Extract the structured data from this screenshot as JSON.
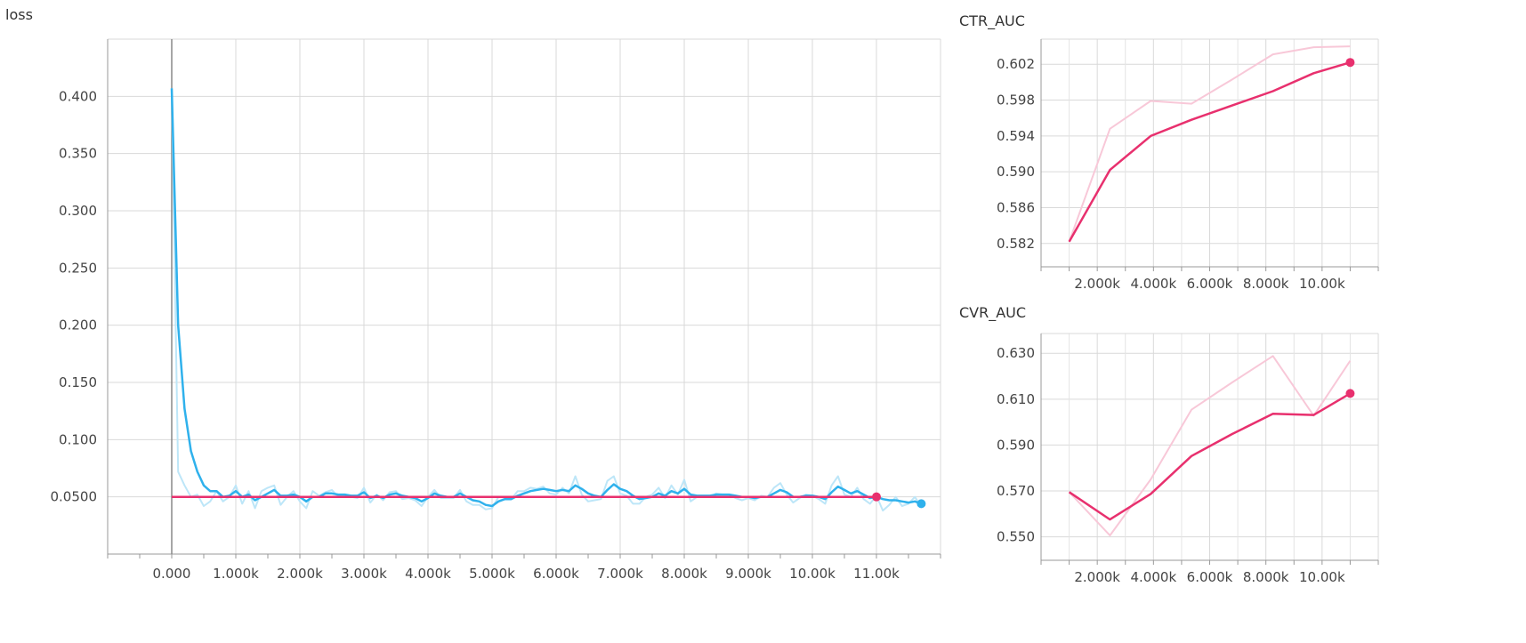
{
  "chart_data": [
    {
      "type": "line",
      "title": "loss",
      "xlim": [
        -1000,
        12000
      ],
      "ylim": [
        0,
        0.45
      ],
      "x_ticks": [
        0,
        1000,
        2000,
        3000,
        4000,
        5000,
        6000,
        7000,
        8000,
        9000,
        10000,
        11000
      ],
      "x_tick_labels": [
        "0.000",
        "1.000k",
        "2.000k",
        "3.000k",
        "4.000k",
        "5.000k",
        "6.000k",
        "7.000k",
        "8.000k",
        "9.000k",
        "10.00k",
        "11.00k"
      ],
      "y_ticks": [
        0.05,
        0.1,
        0.15,
        0.2,
        0.25,
        0.3,
        0.35,
        0.4
      ],
      "y_tick_labels": [
        "0.0500",
        "0.100",
        "0.150",
        "0.200",
        "0.250",
        "0.300",
        "0.350",
        "0.400"
      ],
      "grid": true,
      "colors": {
        "blue": "#2fb1ec",
        "blue_raw": "#bde6f8",
        "pink": "#e8306e"
      },
      "series": [
        {
          "color": "#2fb1ec",
          "raw_color": "#bde6f8",
          "x": [
            0,
            100,
            200,
            300,
            400,
            500,
            600,
            700,
            800,
            900,
            1000,
            1100,
            1200,
            1300,
            1400,
            1500,
            1600,
            1700,
            1800,
            1900,
            2000,
            2100,
            2200,
            2300,
            2400,
            2500,
            2600,
            2700,
            2800,
            2900,
            3000,
            3100,
            3200,
            3300,
            3400,
            3500,
            3600,
            3700,
            3800,
            3900,
            4000,
            4100,
            4200,
            4300,
            4400,
            4500,
            4600,
            4700,
            4800,
            4900,
            5000,
            5100,
            5200,
            5300,
            5400,
            5500,
            5600,
            5700,
            5800,
            5900,
            6000,
            6100,
            6200,
            6300,
            6400,
            6500,
            6600,
            6700,
            6800,
            6900,
            7000,
            7100,
            7200,
            7300,
            7400,
            7500,
            7600,
            7700,
            7800,
            7900,
            8000,
            8100,
            8200,
            8300,
            8400,
            8500,
            8600,
            8700,
            8800,
            8900,
            9000,
            9100,
            9200,
            9300,
            9400,
            9500,
            9600,
            9700,
            9800,
            9900,
            10000,
            10100,
            10200,
            10300,
            10400,
            10500,
            10600,
            10700,
            10800,
            10900,
            11000,
            11100,
            11200,
            11300,
            11400,
            11500,
            11600,
            11700
          ],
          "smoothed": [
            0.407,
            0.2,
            0.127,
            0.09,
            0.072,
            0.06,
            0.055,
            0.055,
            0.05,
            0.051,
            0.055,
            0.05,
            0.052,
            0.047,
            0.05,
            0.053,
            0.056,
            0.051,
            0.051,
            0.052,
            0.05,
            0.046,
            0.05,
            0.05,
            0.053,
            0.053,
            0.052,
            0.052,
            0.051,
            0.051,
            0.054,
            0.049,
            0.051,
            0.049,
            0.052,
            0.053,
            0.051,
            0.05,
            0.049,
            0.046,
            0.049,
            0.053,
            0.051,
            0.05,
            0.05,
            0.053,
            0.05,
            0.047,
            0.046,
            0.043,
            0.042,
            0.046,
            0.048,
            0.048,
            0.051,
            0.053,
            0.055,
            0.056,
            0.057,
            0.056,
            0.055,
            0.056,
            0.055,
            0.06,
            0.057,
            0.053,
            0.051,
            0.05,
            0.056,
            0.061,
            0.057,
            0.055,
            0.051,
            0.048,
            0.049,
            0.05,
            0.053,
            0.051,
            0.055,
            0.053,
            0.057,
            0.052,
            0.051,
            0.051,
            0.051,
            0.052,
            0.052,
            0.052,
            0.051,
            0.05,
            0.05,
            0.049,
            0.05,
            0.05,
            0.053,
            0.056,
            0.054,
            0.05,
            0.05,
            0.051,
            0.051,
            0.05,
            0.048,
            0.054,
            0.059,
            0.056,
            0.053,
            0.055,
            0.052,
            0.049,
            0.05,
            0.048,
            0.047,
            0.047,
            0.046,
            0.045,
            0.046,
            0.044
          ],
          "raw": [
            0.407,
            0.072,
            0.06,
            0.05,
            0.052,
            0.042,
            0.046,
            0.055,
            0.046,
            0.05,
            0.06,
            0.044,
            0.055,
            0.04,
            0.055,
            0.058,
            0.06,
            0.043,
            0.05,
            0.055,
            0.046,
            0.04,
            0.055,
            0.051,
            0.054,
            0.056,
            0.05,
            0.052,
            0.05,
            0.049,
            0.058,
            0.045,
            0.052,
            0.047,
            0.054,
            0.055,
            0.048,
            0.049,
            0.047,
            0.042,
            0.05,
            0.056,
            0.049,
            0.049,
            0.049,
            0.056,
            0.046,
            0.043,
            0.043,
            0.039,
            0.04,
            0.05,
            0.05,
            0.048,
            0.055,
            0.055,
            0.058,
            0.057,
            0.059,
            0.053,
            0.052,
            0.058,
            0.053,
            0.068,
            0.052,
            0.046,
            0.047,
            0.048,
            0.064,
            0.068,
            0.053,
            0.051,
            0.044,
            0.044,
            0.05,
            0.052,
            0.058,
            0.049,
            0.06,
            0.052,
            0.065,
            0.046,
            0.05,
            0.05,
            0.05,
            0.053,
            0.052,
            0.052,
            0.049,
            0.047,
            0.049,
            0.047,
            0.051,
            0.05,
            0.058,
            0.062,
            0.052,
            0.045,
            0.049,
            0.052,
            0.051,
            0.048,
            0.044,
            0.06,
            0.068,
            0.052,
            0.05,
            0.058,
            0.048,
            0.044,
            0.051,
            0.038,
            0.043,
            0.05,
            0.042,
            0.044,
            0.05,
            0.041
          ]
        },
        {
          "color": "#e8306e",
          "x": [
            0,
            11000
          ],
          "smoothed": [
            0.05,
            0.05
          ],
          "raw": [
            0.05,
            0.05
          ]
        }
      ]
    },
    {
      "type": "line",
      "title": "CTR_AUC",
      "xlim": [
        0,
        12000
      ],
      "ylim": [
        0.5794,
        0.6048
      ],
      "x_ticks": [
        2000,
        4000,
        6000,
        8000,
        10000
      ],
      "x_tick_labels": [
        "2.000k",
        "4.000k",
        "6.000k",
        "8.000k",
        "10.00k"
      ],
      "y_ticks": [
        0.582,
        0.586,
        0.59,
        0.594,
        0.598,
        0.602
      ],
      "y_tick_labels": [
        "0.582",
        "0.586",
        "0.590",
        "0.594",
        "0.598",
        "0.602"
      ],
      "grid": true,
      "series": [
        {
          "color": "#e8306e",
          "raw_color": "#f8c8d8",
          "x": [
            1000,
            2450,
            3900,
            5350,
            6800,
            8250,
            9700,
            11000
          ],
          "smoothed": [
            0.5822,
            0.5902,
            0.594,
            0.5958,
            0.5974,
            0.599,
            0.601,
            0.6022
          ],
          "raw": [
            0.5822,
            0.5948,
            0.5979,
            0.5976,
            0.6003,
            0.6031,
            0.6039,
            0.604
          ]
        }
      ]
    },
    {
      "type": "line",
      "title": "CVR_AUC",
      "xlim": [
        0,
        12000
      ],
      "ylim": [
        0.5398,
        0.6386
      ],
      "x_ticks": [
        2000,
        4000,
        6000,
        8000,
        10000
      ],
      "x_tick_labels": [
        "2.000k",
        "4.000k",
        "6.000k",
        "8.000k",
        "10.00k"
      ],
      "y_ticks": [
        0.55,
        0.57,
        0.59,
        0.61,
        0.63
      ],
      "y_tick_labels": [
        "0.550",
        "0.570",
        "0.590",
        "0.610",
        "0.630"
      ],
      "grid": true,
      "series": [
        {
          "color": "#e8306e",
          "raw_color": "#f8c8d8",
          "x": [
            1000,
            2450,
            3900,
            5350,
            6800,
            8250,
            9700,
            11000
          ],
          "smoothed": [
            0.5695,
            0.5576,
            0.5687,
            0.5852,
            0.5948,
            0.6036,
            0.6031,
            0.6125
          ],
          "raw": [
            0.5695,
            0.5506,
            0.575,
            0.6054,
            0.6173,
            0.6288,
            0.6028,
            0.6267
          ]
        }
      ]
    }
  ]
}
